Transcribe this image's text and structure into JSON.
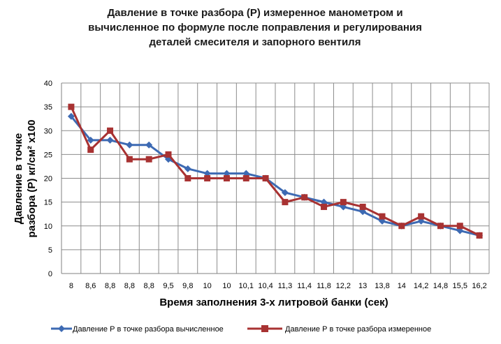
{
  "chart_data": {
    "type": "line",
    "title_lines": [
      "Давление в точке разбора (Р) измеренное манометром и",
      "вычисленное по формуле после  поправления  и регулирования",
      "деталей смесителя и запорного вентиля"
    ],
    "xlabel": "Время заполнения 3-х литровой банки (сек)",
    "ylabel_lines": [
      "Давление в точке",
      "разбора (Р) кг/см² х100"
    ],
    "ylim": [
      0,
      40
    ],
    "ystep": 5,
    "grid": true,
    "legend_position": "bottom",
    "categories": [
      "8",
      "8,6",
      "8,8",
      "8,8",
      "8,8",
      "9,5",
      "9,8",
      "10",
      "10",
      "10,1",
      "10,4",
      "11,3",
      "11,4",
      "11,8",
      "12,2",
      "13",
      "13,8",
      "14",
      "14,2",
      "14,8",
      "15,5",
      "16,2"
    ],
    "series": [
      {
        "name": "Давление Р в точке разбора вычисленное",
        "color": "#3d6ab3",
        "marker": "diamond",
        "values": [
          33,
          28,
          28,
          27,
          27,
          24,
          22,
          21,
          21,
          21,
          20,
          17,
          16,
          15,
          14,
          13,
          11,
          10,
          11,
          10,
          9,
          8
        ]
      },
      {
        "name": "Давление Р в точке разбора измеренное",
        "color": "#a83232",
        "marker": "square",
        "values": [
          35,
          26,
          30,
          24,
          24,
          25,
          20,
          20,
          20,
          20,
          20,
          15,
          16,
          14,
          15,
          14,
          12,
          10,
          12,
          10,
          10,
          8
        ]
      }
    ]
  }
}
